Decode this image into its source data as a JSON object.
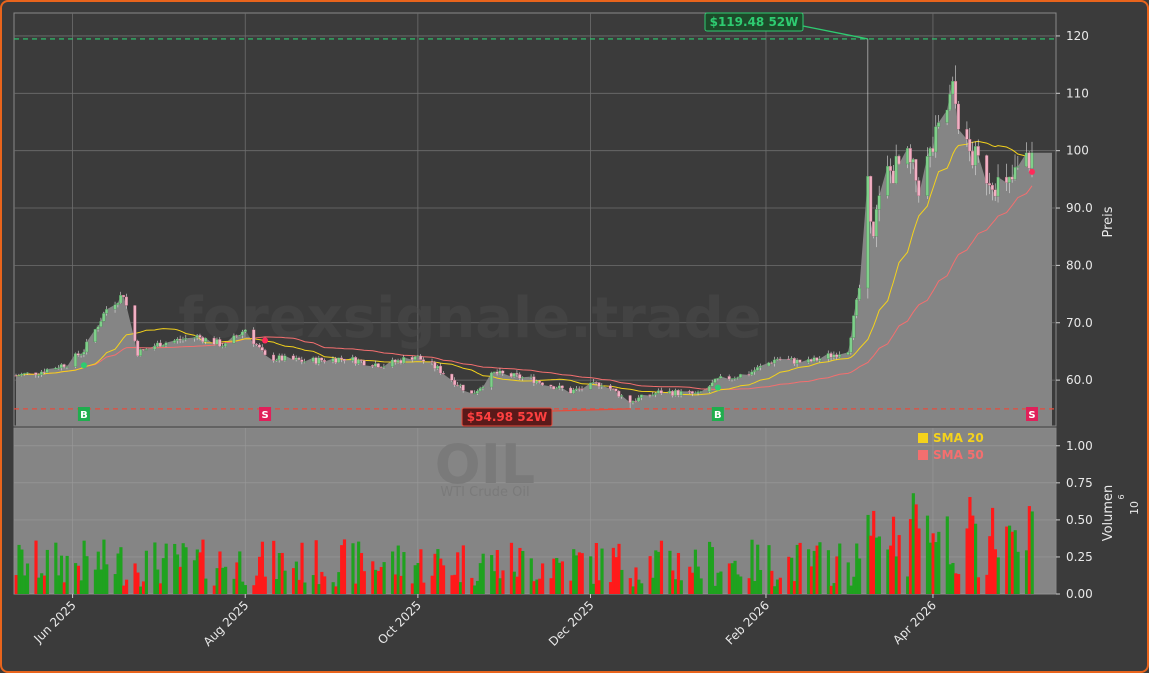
{
  "watermark": {
    "main": "forexsignale.trade",
    "ticker": "OIL",
    "subtitle": "WTI Crude Oil"
  },
  "colors": {
    "background": "#3b3b3b",
    "panel": "#858585",
    "grid": "#6e6e6e",
    "up": "#1fa21f",
    "down": "#ff1a1a",
    "sma20": "#f4d21c",
    "sma50": "#f46f6f",
    "high_line": "#2ecc71",
    "low_line": "#e74c3c",
    "border": "#e8641c"
  },
  "annotations": {
    "high_label": "$119.48 52W",
    "low_label": "$54.98 52W",
    "buy_marker": "B",
    "sell_marker": "S"
  },
  "legend": {
    "sma20": "SMA 20",
    "sma50": "SMA 50"
  },
  "chart_data": [
    {
      "type": "candlestick",
      "title": "",
      "ylabel": "Preis",
      "ylim": [
        52,
        124
      ],
      "y_ticks": [
        "60.0",
        "70.0",
        "80.0",
        "90.0",
        "100",
        "110",
        "120"
      ],
      "y_tick_values": [
        60,
        70,
        80,
        90,
        100,
        110,
        120
      ],
      "x_labels": [
        "Jun 2025",
        "Aug 2025",
        "Oct 2025",
        "Dec 2025",
        "Feb 2026",
        "Apr 2026"
      ],
      "x_label_dates": [
        "2025-06-01",
        "2025-08-01",
        "2025-10-01",
        "2025-12-01",
        "2026-02-01",
        "2026-04-01"
      ],
      "x_range": [
        "2025-05-12",
        "2026-05-06"
      ],
      "grid": true,
      "high_52w": 119.48,
      "low_52w": 54.98,
      "close_anchors": [
        [
          "2025-05-12",
          60.8
        ],
        [
          "2025-05-20",
          61.4
        ],
        [
          "2025-05-30",
          62.9
        ],
        [
          "2025-06-05",
          65.2
        ],
        [
          "2025-06-13",
          72.4
        ],
        [
          "2025-06-19",
          75.0
        ],
        [
          "2025-06-24",
          64.8
        ],
        [
          "2025-07-02",
          66.4
        ],
        [
          "2025-07-15",
          67.6
        ],
        [
          "2025-07-25",
          66.0
        ],
        [
          "2025-08-01",
          68.9
        ],
        [
          "2025-08-08",
          64.0
        ],
        [
          "2025-08-22",
          63.3
        ],
        [
          "2025-09-05",
          63.8
        ],
        [
          "2025-09-19",
          62.6
        ],
        [
          "2025-09-30",
          64.2
        ],
        [
          "2025-10-08",
          62.0
        ],
        [
          "2025-10-20",
          57.5
        ],
        [
          "2025-10-28",
          61.2
        ],
        [
          "2025-11-10",
          60.2
        ],
        [
          "2025-11-24",
          58.0
        ],
        [
          "2025-12-05",
          59.5
        ],
        [
          "2025-12-15",
          56.3
        ],
        [
          "2025-12-26",
          58.0
        ],
        [
          "2026-01-08",
          57.5
        ],
        [
          "2026-01-15",
          60.0
        ],
        [
          "2026-01-26",
          61.2
        ],
        [
          "2026-02-05",
          63.8
        ],
        [
          "2026-02-15",
          63.0
        ],
        [
          "2026-02-25",
          64.5
        ],
        [
          "2026-03-02",
          65.4
        ],
        [
          "2026-03-06",
          76.0
        ],
        [
          "2026-03-09",
          93.0
        ],
        [
          "2026-03-11",
          87.0
        ],
        [
          "2026-03-16",
          96.0
        ],
        [
          "2026-03-23",
          98.0
        ],
        [
          "2026-03-27",
          94.0
        ],
        [
          "2026-04-03",
          103.0
        ],
        [
          "2026-04-08",
          110.0
        ],
        [
          "2026-04-13",
          100.0
        ],
        [
          "2026-04-20",
          96.0
        ],
        [
          "2026-04-27",
          93.0
        ],
        [
          "2026-05-01",
          96.5
        ],
        [
          "2026-05-06",
          99.0
        ]
      ],
      "signals": [
        {
          "date": "2025-06-05",
          "type": "buy",
          "value": 62.6
        },
        {
          "date": "2025-08-08",
          "type": "sell",
          "value": 66.9
        },
        {
          "date": "2026-01-15",
          "type": "buy",
          "value": 58.7
        },
        {
          "date": "2026-05-06",
          "type": "sell",
          "value": 96.3
        }
      ]
    },
    {
      "type": "bar",
      "title": "",
      "ylabel": "Volumen",
      "ylabel_exponent_base": "10",
      "ylabel_exponent": "6",
      "ylim": [
        0,
        1.12
      ],
      "y_ticks": [
        "0.00",
        "0.25",
        "0.50",
        "0.75",
        "1.00"
      ],
      "y_tick_values": [
        0,
        0.25,
        0.5,
        0.75,
        1.0
      ]
    }
  ]
}
